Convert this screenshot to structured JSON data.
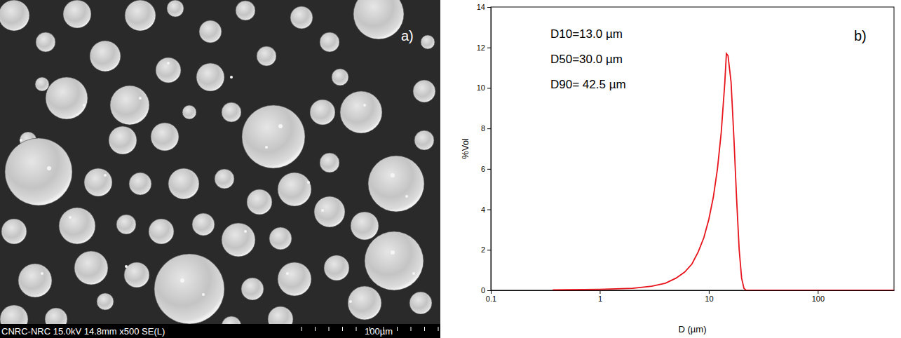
{
  "image": {
    "label": "a)",
    "info": "CNRC-NRC 15.0kV 14.8mm x500 SE(L)",
    "scale_bar": "100µm"
  },
  "chart_data": {
    "type": "line",
    "log": "x",
    "grid": false,
    "color": "#e8141c",
    "xlabel": "D (µm)",
    "ylabel": "%Vol",
    "annotations": [
      "D10=13.0 µm",
      "D50=30.0 µm",
      "D90= 42.5 µm",
      "b)"
    ],
    "x": [
      0.37,
      0.5,
      1,
      2,
      3,
      4,
      5,
      6,
      7,
      8,
      9,
      10,
      11,
      12,
      13,
      14,
      14.5,
      15,
      16,
      17,
      18,
      19,
      20,
      21,
      22,
      50,
      100,
      200,
      500
    ],
    "values": [
      0.02,
      0.03,
      0.05,
      0.1,
      0.2,
      0.35,
      0.6,
      0.9,
      1.3,
      1.9,
      2.6,
      3.5,
      4.6,
      6.0,
      7.8,
      10.2,
      11.7,
      11.6,
      10.3,
      7.5,
      4.5,
      2.0,
      0.6,
      0.1,
      0,
      0,
      0,
      0,
      0
    ],
    "xlim": [
      0.1,
      500
    ],
    "xticks": [
      0.1,
      1,
      10,
      100
    ],
    "ylim": [
      0,
      14
    ],
    "yticks": [
      0,
      2,
      4,
      6,
      8,
      10,
      12,
      14
    ]
  }
}
